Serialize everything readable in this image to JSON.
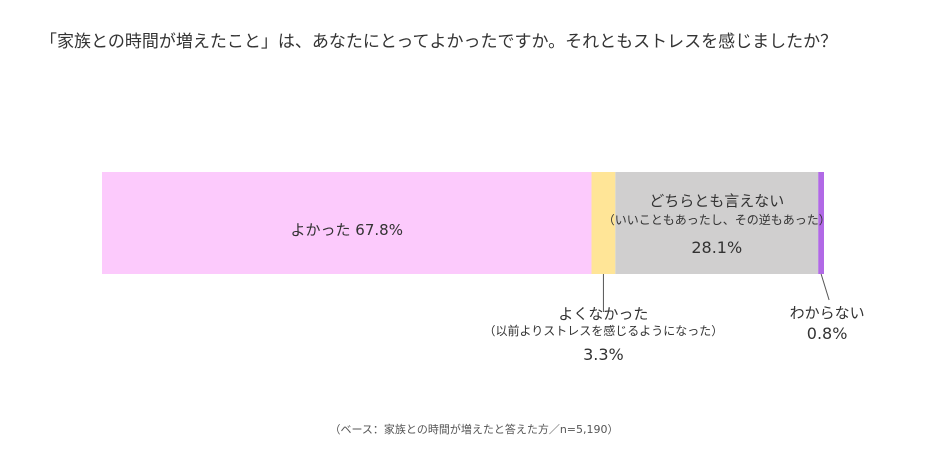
{
  "title": "「家族との時間が増えたこと」は、あなたにとってよかったですか。それともストレスを感じましたか？",
  "chart_data": {
    "type": "bar",
    "orientation": "horizontal-stacked-100",
    "title": "「家族との時間が増えたこと」は、あなたにとってよかったですか。それともストレスを感じましたか？",
    "note": "（ベース：家族との時間が増えたと答えた方／n=5,190）",
    "unit": "%",
    "segments": [
      {
        "label": "よかった",
        "sublabel": "",
        "value": 67.8,
        "display": "67.8%",
        "color": "#fccafc"
      },
      {
        "label": "よくなかった",
        "sublabel": "（以前よりストレスを感じるようになった）",
        "value": 3.3,
        "display": "3.3%",
        "color": "#ffe597"
      },
      {
        "label": "どちらとも言えない",
        "sublabel": "（いいこともあったし、その逆もあった）",
        "value": 28.1,
        "display": "28.1%",
        "color": "#d0cfcf"
      },
      {
        "label": "わからない",
        "sublabel": "",
        "value": 0.8,
        "display": "0.8%",
        "color": "#b169e6"
      }
    ]
  }
}
